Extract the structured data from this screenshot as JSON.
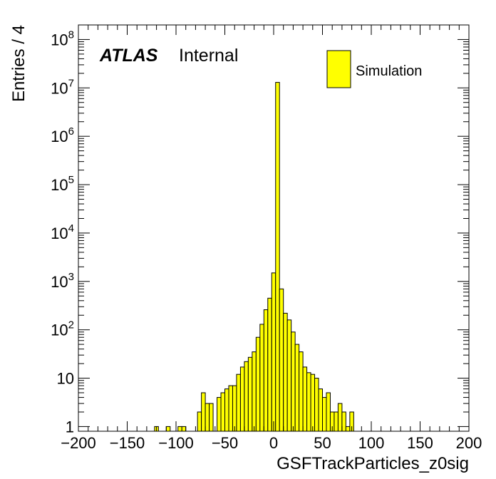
{
  "chart_data": {
    "type": "bar",
    "xlabel": "GSFTrackParticles_z0sig",
    "ylabel": "Entries / 4",
    "xlim": [
      -200,
      200
    ],
    "ylim": [
      0.8,
      200000000
    ],
    "yscale": "log",
    "bin_width": 4,
    "xticks": [
      -200,
      -150,
      -100,
      -50,
      0,
      50,
      100,
      150,
      200
    ],
    "xtick_labels": [
      "−200",
      "−150",
      "−100",
      "−50",
      "0",
      "50",
      "100",
      "150",
      "200"
    ],
    "yticks": [
      {
        "value": 1,
        "base": "1",
        "exp": ""
      },
      {
        "value": 10,
        "base": "10",
        "exp": ""
      },
      {
        "value": 100,
        "base": "10",
        "exp": "2"
      },
      {
        "value": 1000,
        "base": "10",
        "exp": "3"
      },
      {
        "value": 10000,
        "base": "10",
        "exp": "4"
      },
      {
        "value": 100000,
        "base": "10",
        "exp": "5"
      },
      {
        "value": 1000000,
        "base": "10",
        "exp": "6"
      },
      {
        "value": 10000000,
        "base": "10",
        "exp": "7"
      },
      {
        "value": 100000000,
        "base": "10",
        "exp": "8"
      }
    ],
    "bins": [
      {
        "x": -120,
        "y": 1
      },
      {
        "x": -108,
        "y": 1
      },
      {
        "x": -96,
        "y": 1
      },
      {
        "x": -92,
        "y": 1
      },
      {
        "x": -76,
        "y": 2
      },
      {
        "x": -72,
        "y": 5
      },
      {
        "x": -68,
        "y": 3
      },
      {
        "x": -64,
        "y": 3
      },
      {
        "x": -56,
        "y": 4
      },
      {
        "x": -52,
        "y": 5
      },
      {
        "x": -48,
        "y": 6
      },
      {
        "x": -44,
        "y": 7
      },
      {
        "x": -40,
        "y": 7
      },
      {
        "x": -36,
        "y": 12
      },
      {
        "x": -32,
        "y": 17
      },
      {
        "x": -28,
        "y": 22
      },
      {
        "x": -24,
        "y": 27
      },
      {
        "x": -20,
        "y": 35
      },
      {
        "x": -16,
        "y": 70
      },
      {
        "x": -12,
        "y": 130
      },
      {
        "x": -8,
        "y": 260
      },
      {
        "x": -4,
        "y": 450
      },
      {
        "x": 0,
        "y": 1500
      },
      {
        "x": 4,
        "y": 13000000
      },
      {
        "x": 8,
        "y": 700
      },
      {
        "x": 12,
        "y": 220
      },
      {
        "x": 16,
        "y": 160
      },
      {
        "x": 20,
        "y": 90
      },
      {
        "x": 24,
        "y": 50
      },
      {
        "x": 28,
        "y": 35
      },
      {
        "x": 32,
        "y": 17
      },
      {
        "x": 36,
        "y": 13
      },
      {
        "x": 40,
        "y": 12
      },
      {
        "x": 44,
        "y": 10
      },
      {
        "x": 48,
        "y": 6
      },
      {
        "x": 52,
        "y": 4
      },
      {
        "x": 56,
        "y": 5
      },
      {
        "x": 60,
        "y": 2
      },
      {
        "x": 64,
        "y": 2
      },
      {
        "x": 68,
        "y": 3
      },
      {
        "x": 72,
        "y": 2
      },
      {
        "x": 76,
        "y": 1
      },
      {
        "x": 80,
        "y": 2
      }
    ],
    "fill_color": "#ffff00",
    "edge_color": "#000000",
    "legend": {
      "position": "top-right",
      "entries": [
        {
          "label": "Simulation",
          "color": "#ffff00"
        }
      ]
    },
    "annotation": {
      "atlas": "ATLAS",
      "status": "Internal",
      "position": "top-left"
    },
    "grid": false
  }
}
